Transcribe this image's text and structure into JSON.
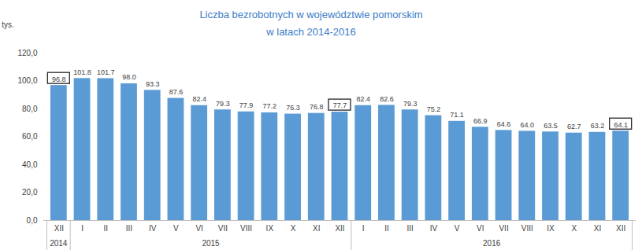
{
  "chart_data": {
    "type": "bar",
    "title": "Liczba bezrobotnych w województwie pomorskim",
    "subtitle": "w latach 2014-2016",
    "y_label": "tys.",
    "categories": [
      "XII",
      "I",
      "II",
      "III",
      "IV",
      "V",
      "VI",
      "VII",
      "VIII",
      "IX",
      "X",
      "XI",
      "XII",
      "I",
      "II",
      "III",
      "IV",
      "V",
      "VI",
      "VII",
      "VIII",
      "IX",
      "X",
      "XI",
      "XII"
    ],
    "years": [
      "2014",
      "2015",
      "2015",
      "2015",
      "2015",
      "2015",
      "2015",
      "2015",
      "2015",
      "2015",
      "2015",
      "2015",
      "2015",
      "2016",
      "2016",
      "2016",
      "2016",
      "2016",
      "2016",
      "2016",
      "2016",
      "2016",
      "2016",
      "2016",
      "2016"
    ],
    "values": [
      96.8,
      101.8,
      101.7,
      98.0,
      93.3,
      87.6,
      82.4,
      79.3,
      77.9,
      77.2,
      76.3,
      76.8,
      77.7,
      82.4,
      82.6,
      79.3,
      75.2,
      71.1,
      66.9,
      64.6,
      64.0,
      63.5,
      62.7,
      63.2,
      64.1
    ],
    "value_labels": [
      "96.8",
      "101.8",
      "101.7",
      "98.0",
      "93.3",
      "87.6",
      "82.4",
      "79.3",
      "77.9",
      "77.2",
      "76.3",
      "76.8",
      "77.7",
      "82.4",
      "82.6",
      "79.3",
      "75.2",
      "71.1",
      "66.9",
      "64.6",
      "64.0",
      "63.5",
      "62.7",
      "63.2",
      "64.1"
    ],
    "data_labels": true,
    "color": "#5b9bd5",
    "ylim": [
      0,
      120
    ],
    "yticks": [
      {
        "value": 0,
        "label": "0,0"
      },
      {
        "value": 20,
        "label": "20,0"
      },
      {
        "value": 40,
        "label": "40,0"
      },
      {
        "value": 60,
        "label": "60,0"
      },
      {
        "value": 80,
        "label": "80,0"
      },
      {
        "value": 100,
        "label": "100,0"
      },
      {
        "value": 120,
        "label": "120,0"
      }
    ],
    "grid": false
  }
}
